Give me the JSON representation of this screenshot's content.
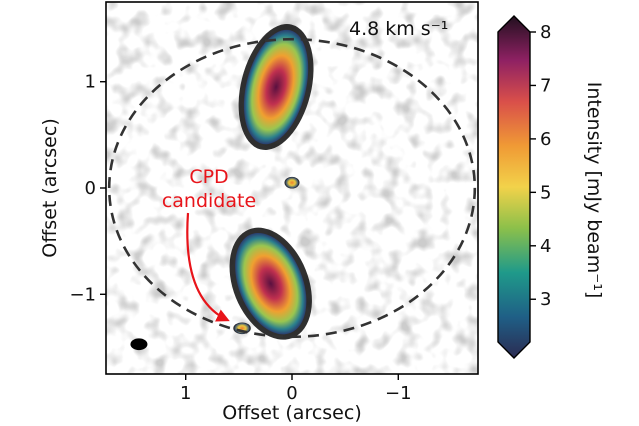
{
  "chart_data": {
    "type": "heatmap",
    "title": "",
    "xlabel": "Offset (arcsec)",
    "ylabel": "Offset (arcsec)",
    "xlim": [
      1.75,
      -1.75
    ],
    "ylim": [
      -1.75,
      1.75
    ],
    "x_ticks": [
      1,
      0,
      -1
    ],
    "x_tick_labels": [
      "1",
      "0",
      "−1"
    ],
    "y_ticks": [
      1,
      0,
      -1
    ],
    "y_tick_labels": [
      "1",
      "0",
      "−1"
    ],
    "velocity_label": "4.8 km s⁻¹",
    "colorbar": {
      "label": "Intensity [mJy beam⁻¹]",
      "range": [
        2.2,
        8.0
      ],
      "ticks": [
        3,
        4,
        5,
        6,
        7,
        8
      ],
      "tick_labels": [
        "3",
        "4",
        "5",
        "6",
        "7",
        "8"
      ],
      "extend": "both",
      "colormap": "inferno-like (yellow to dark purple)"
    },
    "annotation": {
      "text_lines": [
        "CPD",
        "candidate"
      ],
      "color": "#e8141a",
      "points_to": [
        0.57,
        -1.28
      ]
    },
    "ring": {
      "style": "dashed",
      "center": [
        0.0,
        0.0
      ],
      "radius_x": 1.72,
      "radius_y": 1.4
    },
    "beam": {
      "center": [
        1.44,
        -1.47
      ],
      "major": 0.16,
      "minor": 0.11
    },
    "emission_regions": [
      {
        "name": "north-arc",
        "center": [
          0.15,
          0.95
        ],
        "extent_x": 0.28,
        "extent_y": 0.55,
        "peak": 7.6
      },
      {
        "name": "center-source",
        "center": [
          0.0,
          0.05
        ],
        "extent_x": 0.06,
        "extent_y": 0.05,
        "peak": 4.5
      },
      {
        "name": "south-arc",
        "center": [
          0.2,
          -0.9
        ],
        "extent_x": 0.3,
        "extent_y": 0.5,
        "peak": 7.8
      },
      {
        "name": "cpd-candidate",
        "center": [
          0.47,
          -1.32
        ],
        "extent_x": 0.07,
        "extent_y": 0.05,
        "peak": 6.0
      }
    ]
  }
}
